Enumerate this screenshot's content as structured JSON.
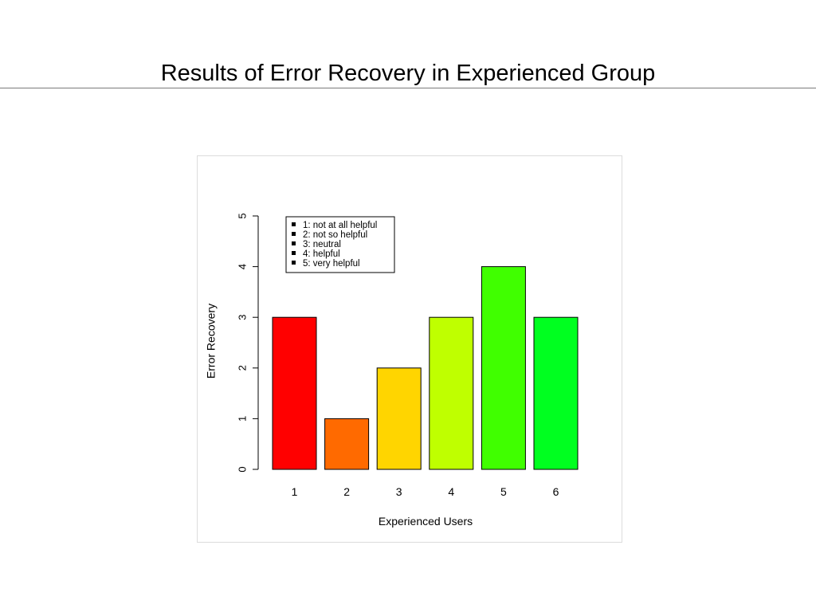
{
  "slide": {
    "title": "Results of Error Recovery in Experienced Group"
  },
  "chart_data": {
    "type": "bar",
    "categories": [
      "1",
      "2",
      "3",
      "4",
      "5",
      "6"
    ],
    "values": [
      3,
      1,
      2,
      3,
      4,
      3
    ],
    "colors": [
      "#ff0000",
      "#ff6a00",
      "#ffd500",
      "#bfff00",
      "#40ff00",
      "#00ff20"
    ],
    "xlabel": "Experienced Users",
    "ylabel": "Error Recovery",
    "ylim": [
      0,
      5
    ],
    "yticks": [
      0,
      1,
      2,
      3,
      4,
      5
    ],
    "grid": false,
    "legend": {
      "placement": "top-left",
      "entries": [
        "1: not at all helpful",
        "2: not so helpful",
        "3: neutral",
        "4: helpful",
        "5: very helpful"
      ]
    }
  }
}
